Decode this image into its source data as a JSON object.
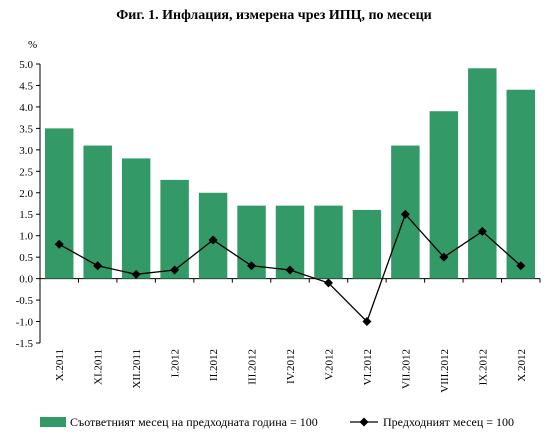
{
  "chart_data": {
    "type": "bar",
    "title": "Фиг. 1. Инфлация, измерена чрез ИПЦ, по месеци",
    "ylabel": "%",
    "xlabel": "",
    "ylim": [
      -1.5,
      5.0
    ],
    "yticks": [
      "5.0",
      "4.5",
      "4.0",
      "3.5",
      "3.0",
      "2.5",
      "2.0",
      "1.5",
      "1.0",
      "0.5",
      "0.0",
      "-0.5",
      "-1.0",
      "-1.5"
    ],
    "categories": [
      "X.2011",
      "XI.2011",
      "XII.2011",
      "I.2012",
      "II.2012",
      "III.2012",
      "IV.2012",
      "V.2012",
      "VI.2012",
      "VII.2012",
      "VIII.2012",
      "IX.2012",
      "X.2012"
    ],
    "series": [
      {
        "name": "Съответният месец на предходната година = 100",
        "type": "bar",
        "color": "#339966",
        "values": [
          3.5,
          3.1,
          2.8,
          2.3,
          2.0,
          1.7,
          1.7,
          1.7,
          1.6,
          3.1,
          3.9,
          4.9,
          4.4
        ]
      },
      {
        "name": "Предходният месец = 100",
        "type": "line",
        "marker": "diamond",
        "color": "#000000",
        "values": [
          0.8,
          0.3,
          0.1,
          0.2,
          0.9,
          0.3,
          0.2,
          -0.1,
          -1.0,
          1.5,
          0.5,
          1.1,
          0.3
        ]
      }
    ],
    "grid": false,
    "legend_position": "bottom"
  }
}
